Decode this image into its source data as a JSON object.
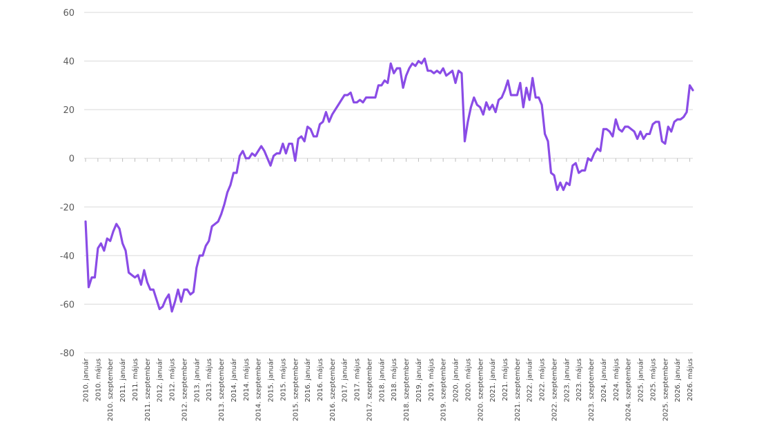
{
  "chart_data": {
    "type": "line",
    "title": "",
    "xlabel": "",
    "ylabel": "",
    "ylim": [
      -80,
      60
    ],
    "yticks": [
      60,
      40,
      20,
      0,
      -20,
      -40,
      -60,
      -80
    ],
    "grid": true,
    "legend": "none",
    "colors": {
      "line": "#8a4ce6",
      "grid": "#d9d9d9",
      "text": "#5a5a5a"
    },
    "x_tick_labels": [
      "2010. január",
      "2010. május",
      "2010. szeptember",
      "2011. január",
      "2011. május",
      "2011. szeptember",
      "2012. január",
      "2012. május",
      "2012. szeptember",
      "2013. január",
      "2013. május",
      "2013. szeptember",
      "2014. január",
      "2014. május",
      "2014. szeptember",
      "2015. január",
      "2015. május",
      "2015. szeptember",
      "2016. január",
      "2016. május",
      "2016. szeptember",
      "2017. január",
      "2017. május",
      "2017. szeptember",
      "2018. január",
      "2018. május",
      "2018. szeptember",
      "2019. január",
      "2019. május",
      "2019. szeptember",
      "2020. január",
      "2020. május",
      "2020. szeptember",
      "2021. január",
      "2021. május",
      "2021. szeptember",
      "2022. január",
      "2022. május",
      "2022. szeptember",
      "2023. január",
      "2023. május",
      "2023. szeptember",
      "2024. január",
      "2024. május",
      "2024. szeptember",
      "2025. január",
      "2025. május",
      "2025. szeptember",
      "2026. január",
      "2026. május"
    ],
    "series": [
      {
        "name": "",
        "start": "2010-01",
        "frequency": "monthly",
        "values": [
          -26,
          -53,
          -49,
          -49,
          -37,
          -35,
          -38,
          -33,
          -34,
          -30,
          -27,
          -29,
          -35,
          -38,
          -47,
          -48,
          -49,
          -48,
          -52,
          -46,
          -51,
          -54,
          -54,
          -58,
          -62,
          -61,
          -58,
          -56,
          -63,
          -59,
          -54,
          -59,
          -54,
          -54,
          -56,
          -55,
          -45,
          -40,
          -40,
          -36,
          -34,
          -28,
          -27,
          -26,
          -23,
          -19,
          -14,
          -11,
          -6,
          -6,
          1,
          3,
          0,
          0,
          2,
          1,
          3,
          5,
          3,
          0,
          -3,
          1,
          2,
          2,
          6,
          2,
          6,
          6,
          -1,
          8,
          9,
          7,
          13,
          12,
          9,
          9,
          14,
          15,
          19,
          15,
          18,
          20,
          22,
          24,
          26,
          26,
          27,
          23,
          23,
          24,
          23,
          25,
          25,
          25,
          25,
          30,
          30,
          32,
          31,
          39,
          35,
          37,
          37,
          29,
          34,
          37,
          39,
          38,
          40,
          39,
          41,
          36,
          36,
          35,
          36,
          35,
          37,
          34,
          35,
          36,
          31,
          36,
          35,
          7,
          15,
          21,
          25,
          22,
          21,
          18,
          23,
          20,
          22,
          19,
          24,
          25,
          28,
          32,
          26,
          26,
          26,
          31,
          21,
          29,
          24,
          33,
          25,
          25,
          22,
          10,
          7,
          -6,
          -7,
          -13,
          -10,
          -13,
          -10,
          -11,
          -3,
          -2,
          -6,
          -5,
          -5,
          0,
          -1,
          2,
          4,
          3,
          12,
          12,
          11,
          9,
          16,
          12,
          11,
          13,
          13,
          12,
          11,
          8,
          11,
          8,
          10,
          10,
          14,
          15,
          15,
          7,
          6,
          13,
          11,
          15,
          16,
          16,
          17,
          19,
          30,
          28
        ]
      }
    ]
  }
}
